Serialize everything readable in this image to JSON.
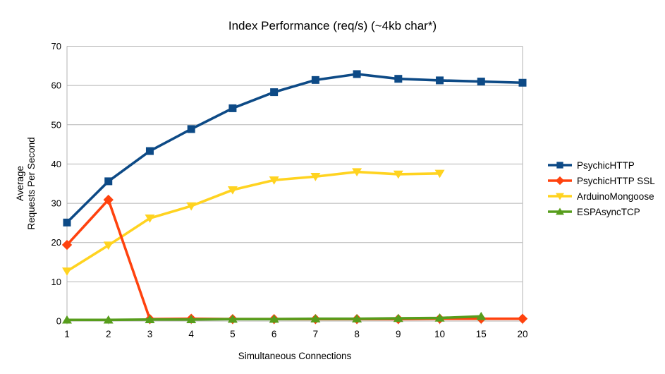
{
  "chart_data": {
    "type": "line",
    "title": "Index Performance (req/s) (~4kb char*)",
    "xlabel": "Simultaneous Connections",
    "ylabel_lines": [
      "Average",
      "Requests Per Second"
    ],
    "categories": [
      "1",
      "2",
      "3",
      "4",
      "5",
      "6",
      "7",
      "8",
      "9",
      "10",
      "15",
      "20"
    ],
    "ylim": [
      0,
      70
    ],
    "ytick_step": 10,
    "grid": "horizontal",
    "legend_position": "right",
    "colors": {
      "grid": "#b3b3b3",
      "axis": "#b3b3b3",
      "text": "#000000",
      "background": "#ffffff"
    },
    "series": [
      {
        "name": "PsychicHTTP",
        "color": "#0d4a86",
        "marker": "square",
        "values": [
          25.1,
          35.6,
          43.3,
          48.9,
          54.2,
          58.3,
          61.4,
          62.9,
          61.7,
          61.3,
          61.0,
          60.7
        ]
      },
      {
        "name": "PsychicHTTP SSL",
        "color": "#ff420e",
        "marker": "diamond",
        "values": [
          19.4,
          30.9,
          0.5,
          0.6,
          0.5,
          0.5,
          0.5,
          0.5,
          0.5,
          0.6,
          0.6,
          0.6
        ]
      },
      {
        "name": "ArduinoMongoose",
        "color": "#ffd320",
        "marker": "triangle-down",
        "values": [
          12.7,
          19.3,
          26.2,
          29.3,
          33.4,
          35.9,
          36.8,
          38.0,
          37.4,
          37.6,
          null,
          null
        ]
      },
      {
        "name": "ESPAsyncTCP",
        "color": "#579d1c",
        "marker": "triangle-up",
        "values": [
          0.3,
          0.3,
          0.4,
          0.4,
          0.5,
          0.5,
          0.6,
          0.6,
          0.7,
          0.8,
          1.2,
          null
        ]
      }
    ]
  }
}
